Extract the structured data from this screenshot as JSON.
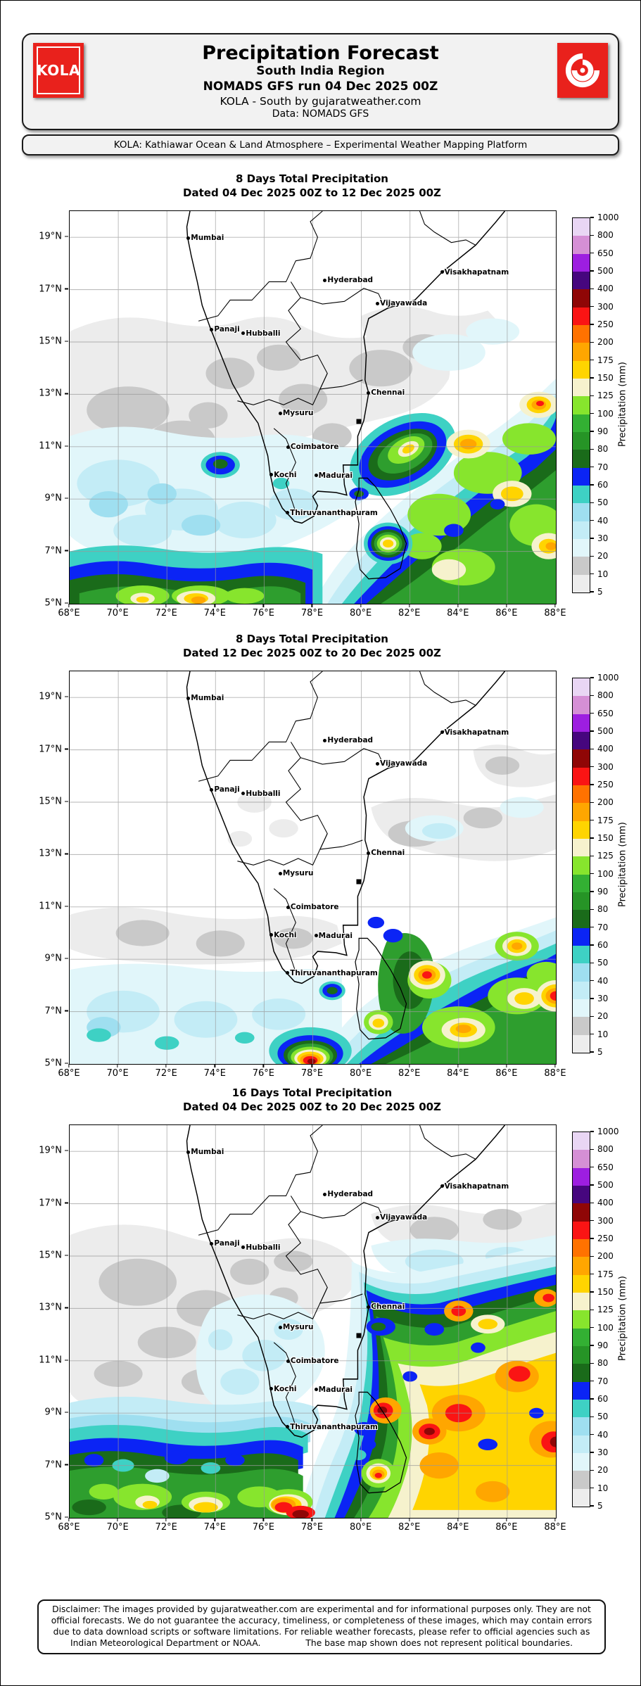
{
  "header": {
    "logo_text": "KOLA",
    "title": "Precipitation Forecast",
    "region": "South India Region",
    "run_line": "NOMADS GFS run 04 Dec 2025 00Z",
    "credit_line": "KOLA - South by gujaratweather.com",
    "data_line": "Data: NOMADS GFS",
    "platform_line": "KOLA: Kathiawar Ocean & Land Atmosphere – Experimental Weather Mapping Platform"
  },
  "panels": [
    {
      "title": "8 Days Total Precipitation",
      "subtitle": "Dated 04 Dec 2025 00Z to 12 Dec 2025 00Z"
    },
    {
      "title": "8 Days Total Precipitation",
      "subtitle": "Dated 12 Dec 2025 00Z to 20 Dec 2025 00Z"
    },
    {
      "title": "16 Days Total Precipitation",
      "subtitle": "Dated 04 Dec 2025 00Z to 20 Dec 2025 00Z"
    }
  ],
  "map": {
    "extent": {
      "lon_min": 68,
      "lon_max": 88,
      "lat_min": 5,
      "lat_max": 20
    },
    "x_ticks": [
      {
        "label": "68°E",
        "lon": 68
      },
      {
        "label": "70°E",
        "lon": 70
      },
      {
        "label": "72°E",
        "lon": 72
      },
      {
        "label": "74°E",
        "lon": 74
      },
      {
        "label": "76°E",
        "lon": 76
      },
      {
        "label": "78°E",
        "lon": 78
      },
      {
        "label": "80°E",
        "lon": 80
      },
      {
        "label": "82°E",
        "lon": 82
      },
      {
        "label": "84°E",
        "lon": 84
      },
      {
        "label": "86°E",
        "lon": 86
      },
      {
        "label": "88°E",
        "lon": 88
      }
    ],
    "y_ticks": [
      {
        "label": "19°N",
        "lat": 19
      },
      {
        "label": "17°N",
        "lat": 17
      },
      {
        "label": "15°N",
        "lat": 15
      },
      {
        "label": "13°N",
        "lat": 13
      },
      {
        "label": "11°N",
        "lat": 11
      },
      {
        "label": "9°N",
        "lat": 9
      },
      {
        "label": "7°N",
        "lat": 7
      },
      {
        "label": "5°N",
        "lat": 5
      }
    ],
    "cities": [
      {
        "name": "Mumbai",
        "lon": 72.87,
        "lat": 19.0
      },
      {
        "name": "Hyderabad",
        "lon": 78.49,
        "lat": 17.38
      },
      {
        "name": "Visakhapatnam",
        "lon": 83.3,
        "lat": 17.7
      },
      {
        "name": "Vijayawada",
        "lon": 80.65,
        "lat": 16.5
      },
      {
        "name": "Panaji",
        "lon": 73.83,
        "lat": 15.5
      },
      {
        "name": "Hubballi",
        "lon": 75.13,
        "lat": 15.36
      },
      {
        "name": "Chennai",
        "lon": 80.28,
        "lat": 13.08
      },
      {
        "name": "Mysuru",
        "lon": 76.65,
        "lat": 12.3
      },
      {
        "name": "Coimbatore",
        "lon": 76.97,
        "lat": 11.02
      },
      {
        "name": "Kochi",
        "lon": 76.28,
        "lat": 9.95
      },
      {
        "name": "Madurai",
        "lon": 78.12,
        "lat": 9.93
      },
      {
        "name": "Thiruvananthapuram",
        "lon": 76.95,
        "lat": 8.5
      }
    ],
    "square_marker": {
      "lon": 79.9,
      "lat": 11.95
    }
  },
  "colorbar": {
    "label": "Precipitation (mm)",
    "levels": [
      5,
      10,
      20,
      30,
      40,
      50,
      60,
      70,
      80,
      90,
      100,
      125,
      150,
      175,
      200,
      250,
      300,
      400,
      500,
      650,
      800,
      1000
    ],
    "colors": [
      "#ededed",
      "#c9c9c9",
      "#e1f6fa",
      "#c3ecf6",
      "#9fdff0",
      "#3ed1c4",
      "#0b24f5",
      "#1a6b1a",
      "#269426",
      "#33b033",
      "#87e52d",
      "#f6f2cd",
      "#ffd400",
      "#ffa600",
      "#ff7200",
      "#fa1414",
      "#8f0606",
      "#46067e",
      "#9d1ee0",
      "#d58fd5",
      "#e9d6f4"
    ]
  },
  "disclaimer": {
    "text": "Disclaimer: The images provided by gujaratweather.com are experimental and for informational purposes only. They are not official forecasts. We do not guarantee the accuracy, timeliness, or completeness of these images, which may contain errors due to data download scripts or software limitations. For reliable weather forecasts, please refer to official agencies such as Indian Meteorological Department or NOAA.",
    "note": "The base map shown does not represent political boundaries."
  }
}
